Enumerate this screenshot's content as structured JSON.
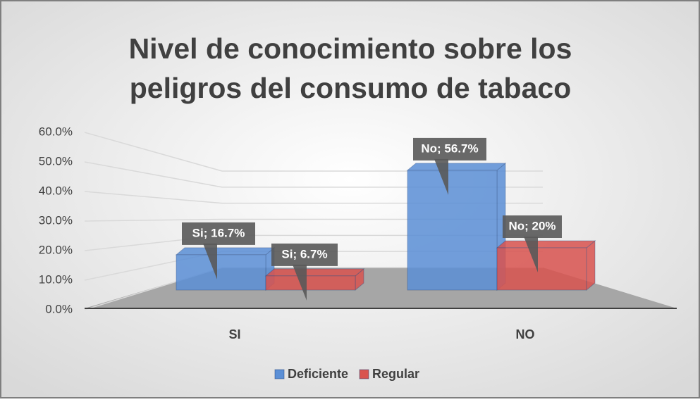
{
  "chart_data": {
    "type": "bar3d",
    "title": [
      "Nivel de conocimiento sobre los",
      "peligros del consumo de tabaco"
    ],
    "categories": [
      "SI",
      "NO"
    ],
    "series": [
      {
        "name": "Deficiente",
        "color": "#5b8fd6",
        "values": [
          16.7,
          56.7
        ],
        "value_labels": [
          "Si; 16.7%",
          "No; 56.7%"
        ]
      },
      {
        "name": "Regular",
        "color": "#d9534f",
        "values": [
          6.7,
          20
        ],
        "value_labels": [
          "Si; 6.7%",
          "No; 20%"
        ]
      }
    ],
    "ylim": [
      0,
      60
    ],
    "yticks": [
      {
        "value": 0,
        "label": "0.0%"
      },
      {
        "value": 10,
        "label": "10.0%"
      },
      {
        "value": 20,
        "label": "20.0%"
      },
      {
        "value": 30,
        "label": "30.0%"
      },
      {
        "value": 40,
        "label": "40.0%"
      },
      {
        "value": 50,
        "label": "50.0%"
      },
      {
        "value": 60,
        "label": "60.0%"
      }
    ],
    "grid": true,
    "legend": "bottom"
  }
}
